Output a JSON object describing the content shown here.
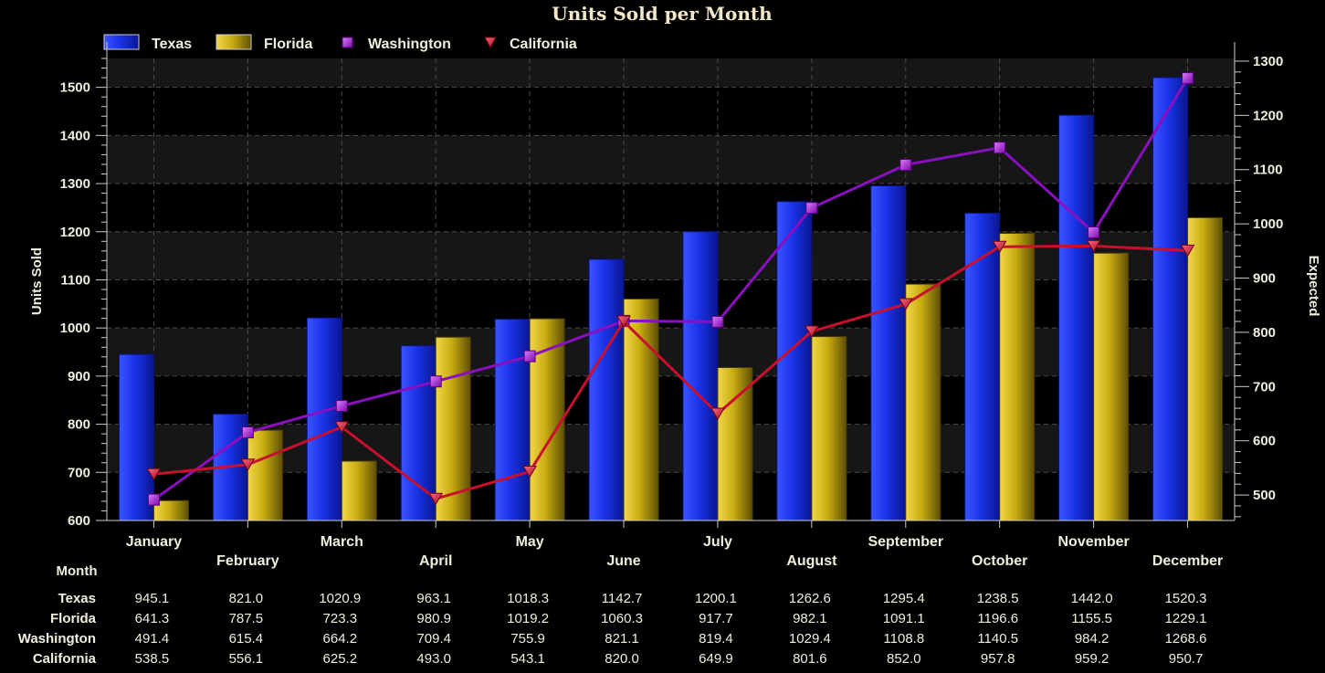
{
  "chart_data": {
    "type": "bar",
    "title": "Units Sold per Month",
    "xlabel": "Month",
    "ylabel": "Units Sold",
    "y2label": "Expected",
    "ylim": [
      600,
      1560
    ],
    "y2lim": [
      453,
      1305
    ],
    "yticks": [
      600,
      700,
      800,
      900,
      1000,
      1100,
      1200,
      1300,
      1400,
      1500
    ],
    "y2ticks": [
      500,
      600,
      700,
      800,
      900,
      1000,
      1100,
      1200,
      1300
    ],
    "grid": true,
    "legend": "top-left",
    "categories": [
      "January",
      "February",
      "March",
      "April",
      "May",
      "June",
      "July",
      "August",
      "September",
      "October",
      "November",
      "December"
    ],
    "series": [
      {
        "name": "Texas",
        "kind": "bar",
        "axis": "left",
        "color": "#1a2fe0",
        "values": [
          945.1,
          821.0,
          1020.9,
          963.1,
          1018.3,
          1142.7,
          1200.1,
          1262.6,
          1295.4,
          1238.5,
          1442.0,
          1520.3
        ]
      },
      {
        "name": "Florida",
        "kind": "bar",
        "axis": "left",
        "color": "#c9ad12",
        "values": [
          641.3,
          787.5,
          723.3,
          980.9,
          1019.2,
          1060.3,
          917.7,
          982.1,
          1091.1,
          1196.6,
          1155.5,
          1229.1
        ]
      },
      {
        "name": "Washington",
        "kind": "line",
        "axis": "right",
        "marker": "square",
        "color": "#8a0fc0",
        "values": [
          491.4,
          615.4,
          664.2,
          709.4,
          755.9,
          821.1,
          819.4,
          1029.4,
          1108.8,
          1140.5,
          984.2,
          1268.6
        ]
      },
      {
        "name": "California",
        "kind": "line",
        "axis": "right",
        "marker": "triangle-down",
        "color": "#c8102e",
        "values": [
          538.5,
          556.1,
          625.2,
          493.0,
          543.1,
          820.0,
          649.9,
          801.6,
          852.0,
          957.8,
          959.2,
          950.7
        ]
      }
    ],
    "table": {
      "rows": [
        {
          "label": "Texas",
          "cells": [
            "945.1",
            "821.0",
            "1020.9",
            "963.1",
            "1018.3",
            "1142.7",
            "1200.1",
            "1262.6",
            "1295.4",
            "1238.5",
            "1442.0",
            "1520.3"
          ]
        },
        {
          "label": "Florida",
          "cells": [
            "641.3",
            "787.5",
            "723.3",
            "980.9",
            "1019.2",
            "1060.3",
            "917.7",
            "982.1",
            "1091.1",
            "1196.6",
            "1155.5",
            "1229.1"
          ]
        },
        {
          "label": "Washington",
          "cells": [
            "491.4",
            "615.4",
            "664.2",
            "709.4",
            "755.9",
            "821.1",
            "819.4",
            "1029.4",
            "1108.8",
            "1140.5",
            "984.2",
            "1268.6"
          ]
        },
        {
          "label": "California",
          "cells": [
            "538.5",
            "556.1",
            "625.2",
            "493.0",
            "543.1",
            "820.0",
            "649.9",
            "801.6",
            "852.0",
            "957.8",
            "959.2",
            "950.7"
          ]
        }
      ]
    }
  }
}
